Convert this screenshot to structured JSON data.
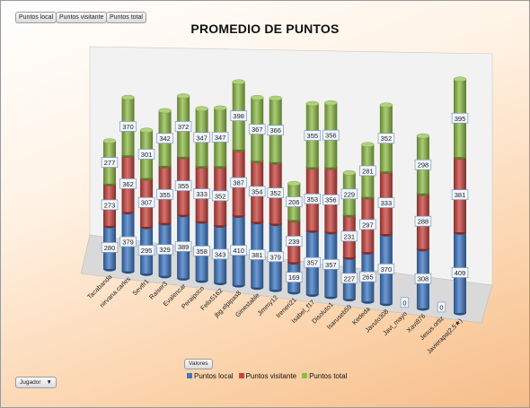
{
  "field_buttons": [
    "Puntos local",
    "Puntos visitante",
    "Puntos total"
  ],
  "values_button": "Valores",
  "row_field": {
    "label": "Jugador",
    "arrow": "▼"
  },
  "colors": {
    "local": "#3d78c4",
    "visitante": "#c9433e",
    "total": "#8fbc47",
    "wall": "#f2f2f2",
    "floor": "#d9d9d9"
  },
  "chart_data": {
    "type": "bar",
    "stacked": true,
    "three_d": true,
    "title": "PROMEDIO DE PUNTOS",
    "legend_position": "bottom",
    "categories": [
      "Tacabanda",
      "nirvana.carles",
      "Sevifr1",
      "Raiser3",
      "Evalencar",
      "Peraipoco",
      "Felix5162",
      "jbg.elpipas8",
      "Ginestable",
      "Jimmy12",
      "Ireneri21",
      "Isabel_f17",
      "Disoluto1",
      "Isaruseb59",
      "Kededa",
      "Javuto308",
      "Javi_mayo",
      "Xavi876",
      "Jesus.ortiz",
      "Javierapa(2,5★)"
    ],
    "series": [
      {
        "name": "Puntos local",
        "values": [
          280,
          379,
          295,
          329,
          389,
          358,
          343,
          410,
          381,
          379,
          169,
          357,
          357,
          227,
          265,
          370,
          0,
          308,
          0,
          409
        ]
      },
      {
        "name": "Puntos visitante",
        "values": [
          273,
          362,
          307,
          355,
          355,
          333,
          352,
          387,
          354,
          352,
          239,
          353,
          356,
          231,
          297,
          333,
          null,
          288,
          null,
          381
        ]
      },
      {
        "name": "Puntos total",
        "values": [
          277,
          370,
          301,
          342,
          372,
          347,
          347,
          398,
          367,
          366,
          206,
          355,
          356,
          229,
          281,
          352,
          null,
          298,
          null,
          395
        ]
      }
    ]
  }
}
